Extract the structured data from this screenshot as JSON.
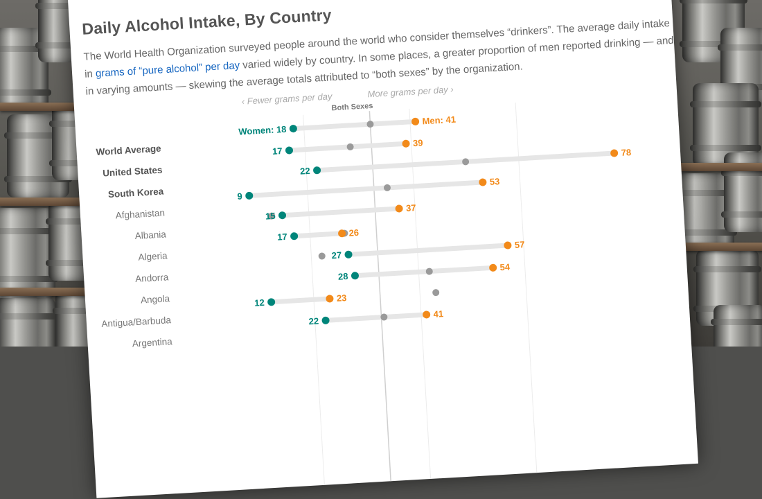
{
  "article": {
    "title": "Daily Alcohol Intake, By Country",
    "intro_part1": "The World Health Organization surveyed people around the world who consider themselves “drinkers”. The average daily intake in ",
    "intro_link": "grams of “pure alcohol” per day",
    "intro_part2": " varied widely by country. In some places, a greater proportion of men reported drinking — and in varying amounts — skewing the average totals attributed to “both sexes” by the organization."
  },
  "axis": {
    "fewer_label": "‹ Fewer grams per day",
    "more_label": "More grams per day ›",
    "both_sexes_label": "Both Sexes",
    "women_prefix": "Women: ",
    "men_prefix": "Men: "
  },
  "colors": {
    "women": "#00857a",
    "men": "#f28a1a",
    "both": "#9a9a9a",
    "track": "#e6e6e6",
    "grid": "#ececec",
    "reference": "#cfcfcf"
  },
  "chart_data": {
    "type": "dumbbell",
    "unit": "grams of pure alcohol per day",
    "reference_line": "World Average (both sexes)",
    "categories": [
      "World Average",
      "United States",
      "South Korea",
      "Afghanistan",
      "Albania",
      "Algeria",
      "Andorra",
      "Angola",
      "Antigua/Barbuda",
      "Argentina"
    ],
    "bold_categories": [
      "World Average",
      "United States",
      "South Korea"
    ],
    "series": [
      {
        "name": "Women",
        "values": [
          18,
          17,
          22,
          9,
          15,
          17,
          27,
          28,
          12,
          22
        ]
      },
      {
        "name": "Both Sexes",
        "values": [
          32.5,
          28.5,
          50,
          35,
          13,
          26.5,
          22,
          42,
          43,
          33
        ]
      },
      {
        "name": "Men",
        "values": [
          41,
          39,
          78,
          53,
          37,
          26,
          57,
          54,
          23,
          41
        ]
      }
    ],
    "printed_labels": {
      "Women": [
        "18",
        "17",
        "22",
        "9",
        "15",
        "17",
        "27",
        "28",
        "12",
        "22"
      ],
      "Men": [
        "41",
        "39",
        "78",
        "53",
        "37",
        "26",
        "57",
        "54",
        "23",
        "41"
      ]
    },
    "xlim": [
      0,
      80
    ],
    "grid": true,
    "legend": "inline labels on first row"
  }
}
